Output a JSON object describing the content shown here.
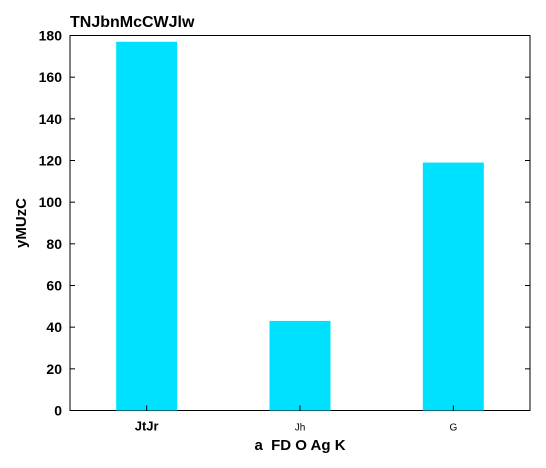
{
  "chart_data": {
    "type": "bar",
    "title": "TNJbnMcCWJlw",
    "xlabel": "a  FD O Ag K",
    "ylabel": "yMUzC",
    "categories": [
      "JtJr",
      "Jh",
      "G"
    ],
    "values": [
      177,
      43,
      119
    ],
    "ylim": [
      0,
      180
    ],
    "yticks": [
      0,
      20,
      40,
      60,
      80,
      100,
      120,
      140,
      160,
      180
    ],
    "bar_color": "#00e1ff",
    "grid": false,
    "legend": "none"
  }
}
